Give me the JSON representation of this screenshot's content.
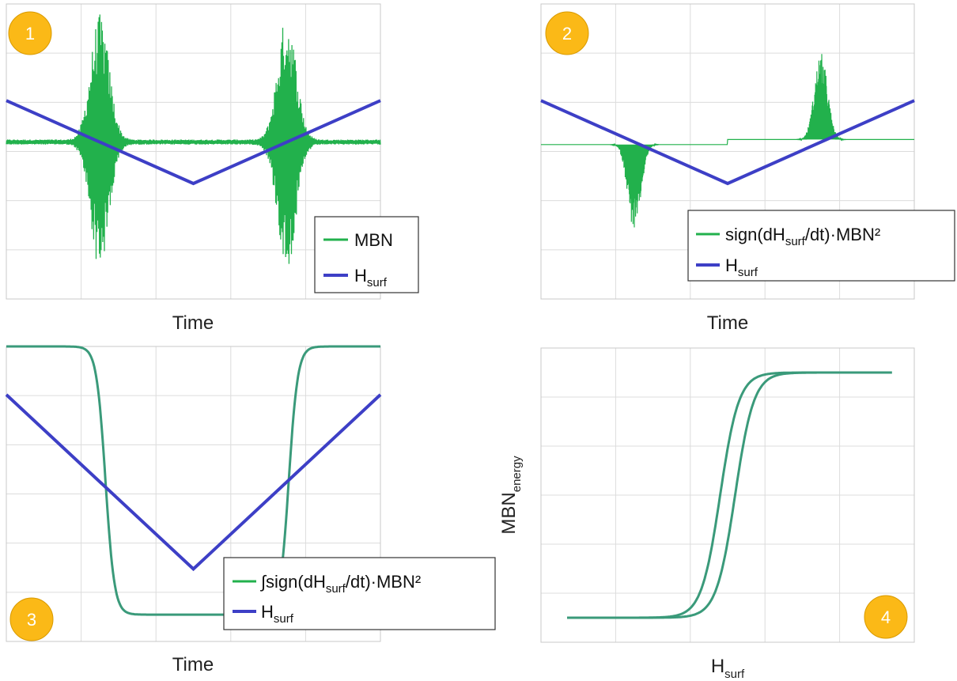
{
  "colors": {
    "mbn": "#22b14c",
    "mbn_edge": "#1f6fa8",
    "hsurf": "#3d3fc6",
    "curve": "#3a9a7a",
    "grid": "#dcdcdc",
    "badge": "#fbb917",
    "badge_stroke": "#d99a00"
  },
  "chart_data": [
    {
      "id": "1",
      "type": "line",
      "xlabel": "Time",
      "ylabel": "",
      "grid": true,
      "legend_position": "bottom-right",
      "badge": "1",
      "series": [
        {
          "name": "MBN",
          "kind": "burst_noise",
          "bursts": [
            {
              "center": 0.25,
              "width": 0.035,
              "amp_pos": 1.0,
              "amp_neg": 1.0
            },
            {
              "center": 0.75,
              "width": 0.035,
              "amp_pos": 1.0,
              "amp_neg": 1.0
            }
          ]
        },
        {
          "name": "H_surf",
          "kind": "triangle",
          "x": [
            0,
            0.5,
            1
          ],
          "y": [
            0.33,
            -0.33,
            0.33
          ]
        }
      ],
      "legend": [
        {
          "label": "MBN",
          "sub": ""
        },
        {
          "label": "H",
          "sub": "surf"
        }
      ]
    },
    {
      "id": "2",
      "type": "line",
      "xlabel": "Time",
      "ylabel": "",
      "grid": true,
      "legend_position": "bottom-right",
      "badge": "2",
      "series": [
        {
          "name": "sign(dH_surf/dt)·MBN²",
          "kind": "signed_energy",
          "bursts": [
            {
              "center": 0.25,
              "width": 0.035,
              "amp": -0.69
            },
            {
              "center": 0.75,
              "width": 0.035,
              "amp": 0.69
            }
          ]
        },
        {
          "name": "H_surf",
          "kind": "triangle",
          "x": [
            0,
            0.5,
            1
          ],
          "y": [
            0.33,
            -0.33,
            0.33
          ]
        }
      ],
      "legend": [
        {
          "label": "sign(dH",
          "sub": "surf",
          "rest": "/dt)·MBN²"
        },
        {
          "label": "H",
          "sub": "surf"
        }
      ]
    },
    {
      "id": "3",
      "type": "line",
      "xlabel": "Time",
      "ylabel": "",
      "grid": true,
      "legend_position": "bottom-right",
      "badge": "3",
      "series": [
        {
          "name": "∫sign(dH_surf/dt)·MBN²",
          "kind": "integral",
          "high": 1.0,
          "low": 0.0,
          "fall_center": 0.265,
          "rise_center": 0.755
        },
        {
          "name": "H_surf",
          "kind": "triangle",
          "x": [
            0,
            0.5,
            1
          ],
          "y": [
            0.82,
            0.17,
            0.82
          ]
        }
      ],
      "legend": [
        {
          "label": "∫sign(dH",
          "sub": "surf",
          "rest": "/dt)·MBN²"
        },
        {
          "label": "H",
          "sub": "surf"
        }
      ]
    },
    {
      "id": "4",
      "type": "line",
      "xlabel": "H",
      "xlabel_sub": "surf",
      "ylabel": "MBN",
      "ylabel_sub": "energy",
      "grid": true,
      "badge": "4",
      "series": [
        {
          "name": "hysteresis loop",
          "kind": "hysteresis",
          "x_center_up": 0.52,
          "x_center_down": 0.48,
          "low": 0.0,
          "high": 1.0
        }
      ]
    }
  ],
  "badges": [
    "1",
    "2",
    "3",
    "4"
  ]
}
